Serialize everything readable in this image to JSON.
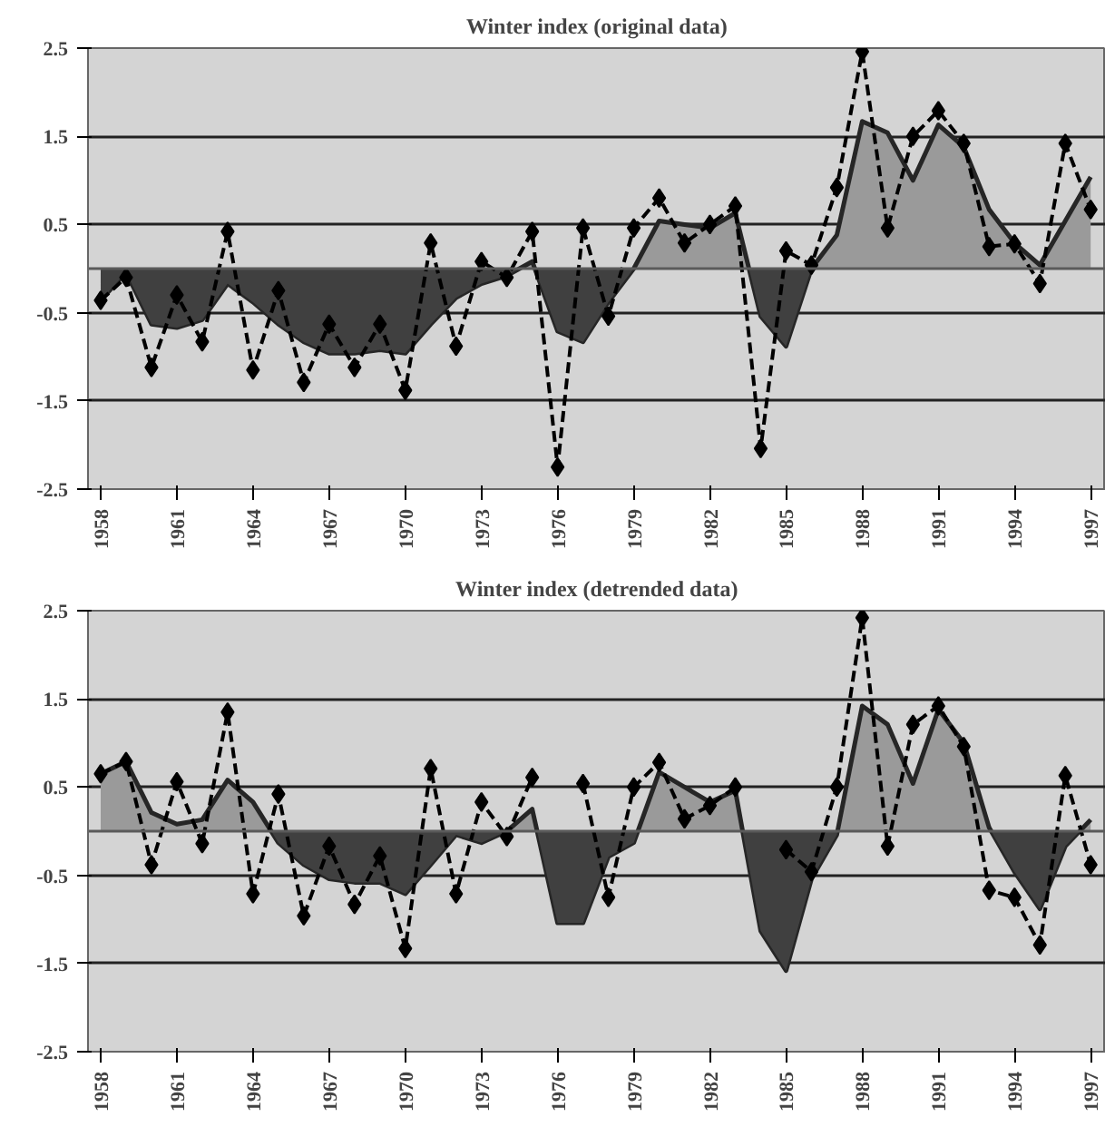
{
  "chart_data": [
    {
      "type": "line",
      "title": "Winter index (original data)",
      "x": [
        1958,
        1959,
        1960,
        1961,
        1962,
        1963,
        1964,
        1965,
        1966,
        1967,
        1968,
        1969,
        1970,
        1971,
        1972,
        1973,
        1974,
        1975,
        1976,
        1977,
        1978,
        1979,
        1980,
        1981,
        1982,
        1983,
        1984,
        1985,
        1986,
        1987,
        1988,
        1989,
        1990,
        1991,
        1992,
        1993,
        1994,
        1995,
        1996,
        1997
      ],
      "xlim": [
        1957.5,
        1997.6
      ],
      "xticks": [
        1958,
        1961,
        1964,
        1967,
        1970,
        1973,
        1976,
        1979,
        1982,
        1985,
        1988,
        1991,
        1994,
        1997
      ],
      "ylim": [
        -2.5,
        2.5
      ],
      "yticks": [
        2.5,
        1.5,
        0.5,
        -0.5,
        -1.5,
        -2.5
      ],
      "grid": "y",
      "ref_lines": [
        {
          "axis": "y",
          "value": 0,
          "color": "#5a5a5a"
        }
      ],
      "series": [
        {
          "type": "area",
          "color": "#9a9a9a",
          "values": [
            -0.36,
            -0.04,
            -0.63,
            -0.67,
            -0.58,
            -0.17,
            -0.38,
            -0.63,
            -0.83,
            -0.96,
            -0.96,
            -0.92,
            -0.96,
            -0.63,
            -0.33,
            -0.17,
            -0.08,
            0.08,
            -0.71,
            -0.83,
            -0.38,
            0,
            0.54,
            0.5,
            0.46,
            0.63,
            -0.54,
            -0.88,
            0,
            0.38,
            1.67,
            1.54,
            1.0,
            1.63,
            1.38,
            0.67,
            0.29,
            0.04,
            0.54,
            1.04
          ]
        },
        {
          "type": "area",
          "color": "#404040",
          "x": [
            1958,
            1959,
            1960,
            1961,
            1962,
            1963,
            1964,
            1965,
            1966,
            1967,
            1968,
            1969,
            1970,
            1971,
            1972,
            1973,
            1974,
            1974.5,
            1974.8,
            1975.1,
            1976,
            1977,
            1978,
            1979,
            1981,
            1983.54,
            1984,
            1985,
            1986
          ],
          "values": [
            -0.36,
            -0.04,
            -0.63,
            -0.67,
            -0.58,
            -0.17,
            -0.38,
            -0.63,
            -0.83,
            -0.96,
            -0.96,
            -0.92,
            -0.96,
            -0.63,
            -0.33,
            -0.17,
            -0.08,
            0,
            null,
            0,
            -0.71,
            -0.83,
            -0.38,
            0,
            null,
            0,
            -0.54,
            -0.88,
            0
          ]
        },
        {
          "type": "line",
          "color": "#000000",
          "line_style": "dashed",
          "marker": "diamond",
          "values": [
            -0.36,
            -0.1,
            -1.12,
            -0.3,
            -0.83,
            0.42,
            -1.15,
            -0.25,
            -1.29,
            -0.63,
            -1.12,
            -0.63,
            -1.38,
            0.29,
            -0.88,
            0.08,
            -0.1,
            0.42,
            -2.25,
            0.46,
            -0.54,
            0.46,
            0.8,
            0.29,
            0.5,
            0.71,
            -2.04,
            0.2,
            0.04,
            0.92,
            2.46,
            0.46,
            1.5,
            1.79,
            1.42,
            0.25,
            0.28,
            -0.17,
            1.42,
            0.67
          ]
        }
      ]
    },
    {
      "type": "line",
      "title": "Winter index (detrended data)",
      "x": [
        1958,
        1959,
        1960,
        1961,
        1962,
        1963,
        1964,
        1965,
        1966,
        1967,
        1968,
        1969,
        1970,
        1971,
        1972,
        1973,
        1974,
        1975,
        1976,
        1977,
        1978,
        1979,
        1980,
        1981,
        1982,
        1983,
        1984,
        1985,
        1986,
        1987,
        1988,
        1989,
        1990,
        1991,
        1992,
        1993,
        1994,
        1995,
        1996,
        1997
      ],
      "xlim": [
        1957.5,
        1997.6
      ],
      "xticks": [
        1958,
        1961,
        1964,
        1967,
        1970,
        1973,
        1976,
        1979,
        1982,
        1985,
        1988,
        1991,
        1994,
        1997
      ],
      "ylim": [
        -2.5,
        2.5
      ],
      "yticks": [
        2.5,
        1.5,
        0.5,
        -0.5,
        -1.5,
        -2.5
      ],
      "grid": "y",
      "ref_lines": [
        {
          "axis": "y",
          "value": 0,
          "color": "#5a5a5a"
        }
      ],
      "series": [
        {
          "type": "area",
          "color": "#9a9a9a",
          "values": [
            0.65,
            0.79,
            0.21,
            0.08,
            0.13,
            0.58,
            0.33,
            -0.13,
            -0.38,
            -0.54,
            -0.58,
            -0.58,
            -0.71,
            -0.38,
            -0.04,
            -0.13,
            0,
            0.25,
            -1.04,
            -1.04,
            -0.29,
            -0.13,
            0.67,
            0.5,
            0.33,
            0.46,
            -1.13,
            -1.58,
            -0.54,
            -0.04,
            1.42,
            1.21,
            0.54,
            1.38,
            1.0,
            0.04,
            -0.46,
            -0.88,
            -0.17,
            0.13
          ]
        },
        {
          "type": "area",
          "color": "#404040",
          "x": [
            1964.72,
            1965,
            1966,
            1967,
            1968,
            1969,
            1970,
            1971,
            1972,
            1973,
            1974,
            1974.6,
            1975.19,
            1976,
            1977,
            1978,
            1979,
            1979.16,
            1981,
            1983.29,
            1984,
            1985,
            1986,
            1987,
            1987.03,
            1990,
            1993.08,
            1994,
            1995,
            1996,
            1996.57
          ],
          "values": [
            0,
            -0.13,
            -0.38,
            -0.54,
            -0.58,
            -0.58,
            -0.71,
            -0.38,
            -0.04,
            -0.13,
            0,
            null,
            0,
            -1.04,
            -1.04,
            -0.29,
            -0.13,
            0,
            null,
            0,
            -1.13,
            -1.58,
            -0.54,
            -0.04,
            0,
            null,
            0,
            -0.46,
            -0.88,
            -0.17,
            0
          ]
        },
        {
          "type": "line",
          "color": "#000000",
          "line_style": "dashed",
          "marker": "diamond",
          "values": [
            0.65,
            0.79,
            -0.38,
            0.56,
            -0.14,
            1.35,
            -0.71,
            0.42,
            -0.96,
            -0.17,
            -0.83,
            -0.28,
            -1.33,
            0.71,
            -0.71,
            0.33,
            -0.06,
            0.61,
            null,
            0.54,
            -0.75,
            0.5,
            0.78,
            0.14,
            0.29,
            0.5,
            null,
            -0.21,
            -0.46,
            0.5,
            2.42,
            -0.17,
            1.21,
            1.42,
            0.96,
            -0.67,
            -0.75,
            -1.29,
            0.63,
            -0.38
          ]
        }
      ]
    }
  ]
}
